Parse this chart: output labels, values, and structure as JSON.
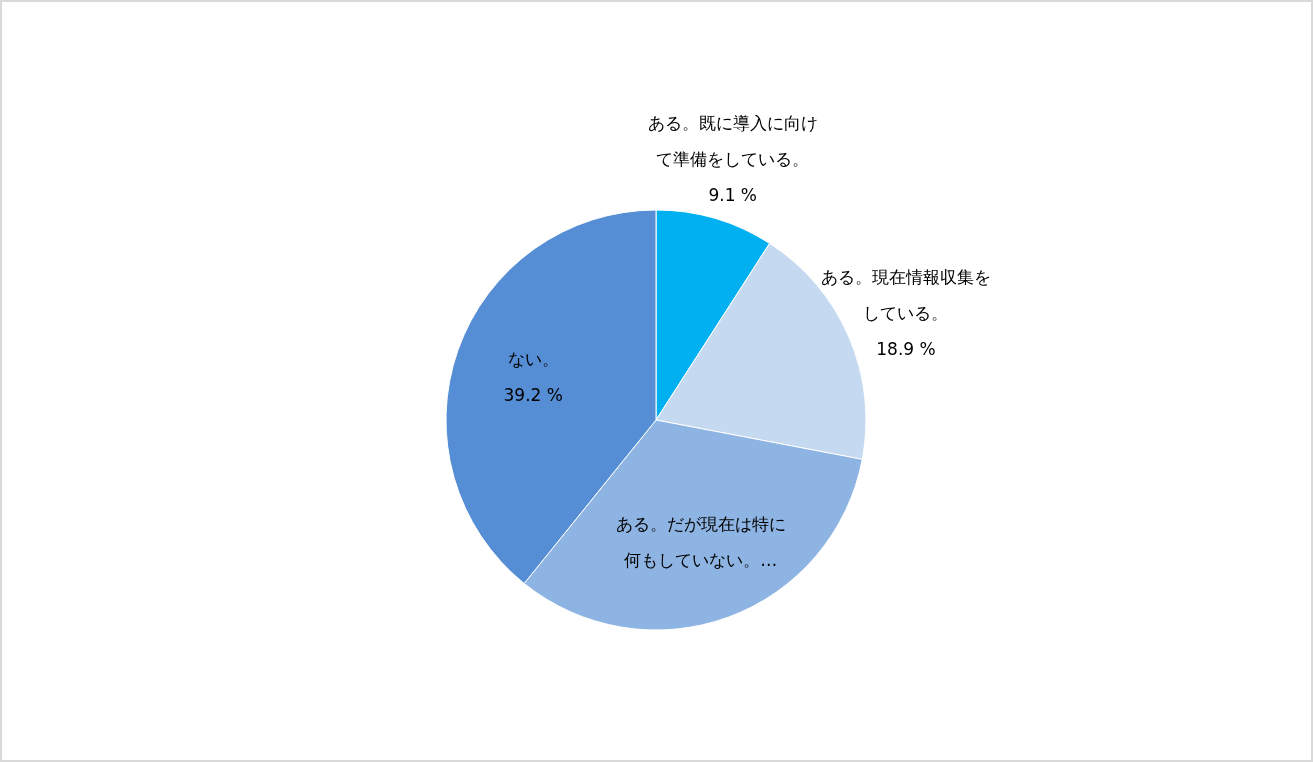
{
  "chart_data": {
    "type": "pie",
    "categories": [
      "ある。既に導入に向けて準備をしている。",
      "ある。現在情報収集をしている。",
      "ある。だが現在は特に何もしていない。…",
      "ない。"
    ],
    "values": [
      9.1,
      18.9,
      32.8,
      39.2
    ],
    "value_labels": [
      "9.1 %",
      "18.9 %",
      null,
      "39.2 %"
    ],
    "colors": [
      "#00b0f0",
      "#c5d9f1",
      "#8db4e2",
      "#558ed5"
    ],
    "legend": false
  }
}
